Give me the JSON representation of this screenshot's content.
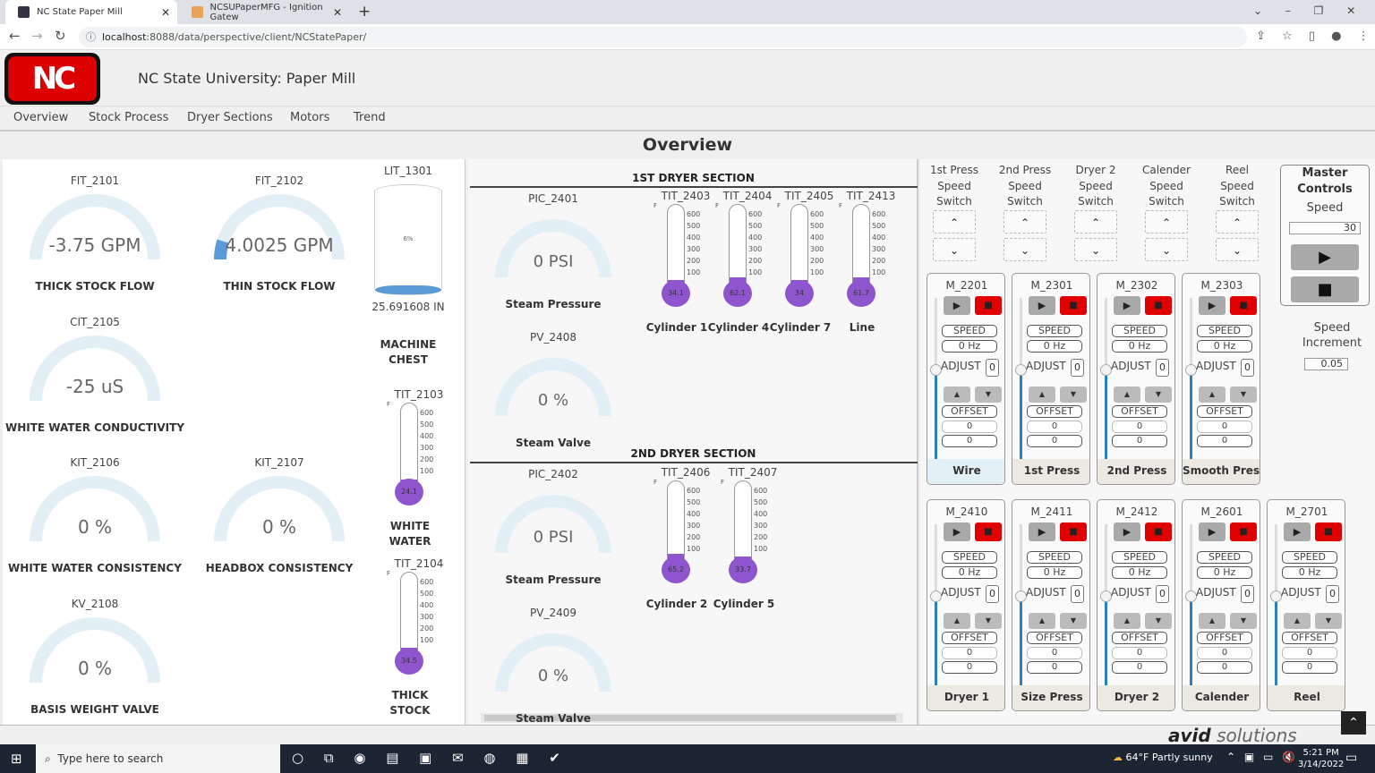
{
  "browser": {
    "tabs": [
      {
        "title": "NC State Paper Mill",
        "active": true
      },
      {
        "title": "NCSUPaperMFG - Ignition Gatew",
        "active": false
      }
    ],
    "url_host": "localhost",
    "url_rest": ":8088/data/perspective/client/NCStatePaper/",
    "new_tab": "+"
  },
  "header": {
    "logo": "NC",
    "title": "NC State University: Paper Mill"
  },
  "nav": [
    "Overview",
    "Stock Process",
    "Dryer Sections",
    "Motors",
    "Trend"
  ],
  "page_title": "Overview",
  "left_gauges": [
    {
      "tag": "FIT_2101",
      "value": "-3.75 GPM",
      "caption": "THICK STOCK FLOW",
      "fill": 0
    },
    {
      "tag": "FIT_2102",
      "value": "4.0025 GPM",
      "caption": "THIN STOCK FLOW",
      "fill": 0.1
    },
    {
      "tag": "CIT_2105",
      "value": "-25 uS",
      "caption": "WHITE WATER CONDUCTIVITY",
      "fill": 0
    },
    {
      "tag": "KIT_2106",
      "value": "0 %",
      "caption": "WHITE WATER CONSISTENCY",
      "fill": 0
    },
    {
      "tag": "KIT_2107",
      "value": "0 %",
      "caption": "HEADBOX CONSISTENCY",
      "fill": 0
    },
    {
      "tag": "KV_2108",
      "value": "0 %",
      "caption": "BASIS WEIGHT VALVE",
      "fill": 0
    }
  ],
  "tank": {
    "tag": "LIT_1301",
    "percent": "6%",
    "level": 0.06,
    "value": "25.691608 IN",
    "caption": "MACHINE CHEST"
  },
  "scale": {
    "unit": "F",
    "ticks": [
      "600",
      "500",
      "400",
      "300",
      "200",
      "100"
    ]
  },
  "left_thermos": [
    {
      "tag": "TIT_2103",
      "value": "24.1",
      "caption": "WHITE WATER"
    },
    {
      "tag": "TIT_2104",
      "value": "34.5",
      "caption": "THICK STOCK"
    }
  ],
  "dryer1": {
    "title": "1ST DRYER SECTION",
    "gauges": [
      {
        "tag": "PIC_2401",
        "value": "0 PSI",
        "caption": "Steam Pressure",
        "fill": 0
      },
      {
        "tag": "PV_2408",
        "value": "0 %",
        "caption": "Steam Valve",
        "fill": 0
      }
    ],
    "thermos": [
      {
        "tag": "TIT_2403",
        "value": "34.1",
        "caption": "Cylinder 1"
      },
      {
        "tag": "TIT_2404",
        "value": "62.1",
        "caption": "Cylinder 4"
      },
      {
        "tag": "TIT_2405",
        "value": "34",
        "caption": "Cylinder 7"
      },
      {
        "tag": "TIT_2413",
        "value": "61.7",
        "caption": "Line"
      }
    ]
  },
  "dryer2": {
    "title": "2ND DRYER SECTION",
    "gauges": [
      {
        "tag": "PIC_2402",
        "value": "0 PSI",
        "caption": "Steam Pressure",
        "fill": 0
      },
      {
        "tag": "PV_2409",
        "value": "0 %",
        "caption": "Steam Valve",
        "fill": 0
      }
    ],
    "thermos": [
      {
        "tag": "TIT_2406",
        "value": "65.2",
        "caption": "Cylinder 2"
      },
      {
        "tag": "TIT_2407",
        "value": "33.7",
        "caption": "Cylinder 5"
      }
    ]
  },
  "switches": [
    {
      "l1": "1st Press",
      "l2": "Speed",
      "l3": "Switch"
    },
    {
      "l1": "2nd Press",
      "l2": "Speed",
      "l3": "Switch"
    },
    {
      "l1": "Dryer 2",
      "l2": "Speed",
      "l3": "Switch"
    },
    {
      "l1": "Calender",
      "l2": "Speed",
      "l3": "Switch"
    },
    {
      "l1": "Reel",
      "l2": "Speed",
      "l3": "Switch"
    }
  ],
  "switch_icons": {
    "up": "^",
    "down": "⌄"
  },
  "master": {
    "title1": "Master",
    "title2": "Controls",
    "speed_label": "Speed",
    "speed": "30",
    "incr_label1": "Speed",
    "incr_label2": "Increment",
    "increment": "0.05"
  },
  "motor_labels": {
    "speed": "SPEED",
    "adjust": "ADJUST",
    "offset": "OFFSET"
  },
  "motors_row1": [
    {
      "tag": "M_2201",
      "hz": "0 Hz",
      "adjust": "0",
      "offset1": "0",
      "offset2": "0",
      "name": "Wire",
      "color": "#e4f0f7"
    },
    {
      "tag": "M_2301",
      "hz": "0 Hz",
      "adjust": "0",
      "offset1": "0",
      "offset2": "0",
      "name": "1st Press",
      "color": "#ece8e2"
    },
    {
      "tag": "M_2302",
      "hz": "0 Hz",
      "adjust": "0",
      "offset1": "0",
      "offset2": "0",
      "name": "2nd Press",
      "color": "#ece8e2"
    },
    {
      "tag": "M_2303",
      "hz": "0 Hz",
      "adjust": "0",
      "offset1": "0",
      "offset2": "0",
      "name": "Smooth Press",
      "color": "#ece8e2"
    }
  ],
  "motors_row2": [
    {
      "tag": "M_2410",
      "hz": "0 Hz",
      "adjust": "0",
      "offset1": "0",
      "offset2": "0",
      "name": "Dryer 1",
      "color": "#ece8e2"
    },
    {
      "tag": "M_2411",
      "hz": "0 Hz",
      "adjust": "0",
      "offset1": "0",
      "offset2": "0",
      "name": "Size Press",
      "color": "#ece8e2"
    },
    {
      "tag": "M_2412",
      "hz": "0 Hz",
      "adjust": "0",
      "offset1": "0",
      "offset2": "0",
      "name": "Dryer 2",
      "color": "#ece8e2"
    },
    {
      "tag": "M_2601",
      "hz": "0 Hz",
      "adjust": "0",
      "offset1": "0",
      "offset2": "0",
      "name": "Calender",
      "color": "#ece8e2"
    },
    {
      "tag": "M_2701",
      "hz": "0 Hz",
      "adjust": "0",
      "offset1": "0",
      "offset2": "0",
      "name": "Reel",
      "color": "#ece8e2"
    }
  ],
  "footer": {
    "brand_bold": "avid",
    "brand_light": "solutions"
  },
  "taskbar": {
    "search": "Type here to search",
    "weather": "64°F  Partly sunny",
    "time": "5:21 PM",
    "date": "3/14/2022"
  },
  "colors": {
    "gauge_track": "#e3eff6",
    "gauge_fill": "#5b9bd5",
    "thermo_fill": "#8e55cf",
    "stop_red": "#e00000",
    "accent_blue": "#2a7fc1"
  }
}
